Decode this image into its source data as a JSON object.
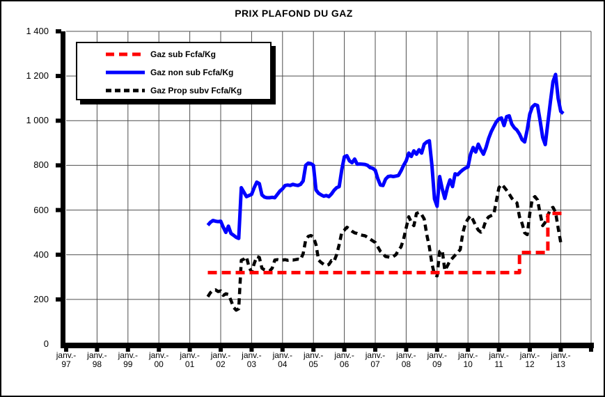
{
  "chart": {
    "title": "PRIX PLAFOND DU GAZ",
    "y_ticks": [
      "0",
      "200",
      "400",
      "600",
      "800",
      "1 000",
      "1 200",
      "1 400"
    ],
    "x_tick_prefix": "janv.-",
    "x_tick_years": [
      "97",
      "98",
      "99",
      "00",
      "01",
      "02",
      "03",
      "04",
      "05",
      "06",
      "07",
      "08",
      "09",
      "10",
      "11",
      "12",
      "13"
    ]
  },
  "legend": {
    "items": [
      {
        "label": "Gaz sub Fcfa/Kg",
        "color": "#ff0000",
        "style": "dashed"
      },
      {
        "label": "Gaz non sub Fcfa/Kg",
        "color": "#0000ff",
        "style": "solid"
      },
      {
        "label": "Gaz Prop subv Fcfa/Kg",
        "color": "#000000",
        "style": "dashed"
      }
    ]
  },
  "chart_data": {
    "type": "line",
    "title": "PRIX PLAFOND DU GAZ",
    "ylabel": "Fcfa/Kg",
    "ylim": [
      0,
      1400
    ],
    "y_step": 200,
    "x_ticks": [
      "janv.-97",
      "janv.-98",
      "janv.-99",
      "janv.-00",
      "janv.-01",
      "janv.-02",
      "janv.-03",
      "janv.-04",
      "janv.-05",
      "janv.-06",
      "janv.-07",
      "janv.-08",
      "janv.-09",
      "janv.-10",
      "janv.-11",
      "janv.-12",
      "janv.-13"
    ],
    "grid": true,
    "legend_position": "top-left",
    "background": "#ffffff",
    "series": [
      {
        "name": "Gaz sub Fcfa/Kg",
        "color": "#ff0000",
        "style": "dashed",
        "width": 5,
        "format": "steps",
        "steps": [
          {
            "start": "2001-08",
            "end": "2011-08",
            "value": 320
          },
          {
            "start": "2011-09",
            "end": "2012-07",
            "value": 410
          },
          {
            "start": "2012-08",
            "end": "2013-02",
            "value": 585
          }
        ]
      },
      {
        "name": "Gaz non sub Fcfa/Kg",
        "color": "#0000ff",
        "style": "solid",
        "width": 5,
        "format": "monthly",
        "start": "2001-08",
        "values": [
          532,
          545,
          553,
          550,
          548,
          550,
          523,
          500,
          528,
          495,
          487,
          478,
          473,
          700,
          680,
          660,
          665,
          670,
          700,
          725,
          718,
          668,
          658,
          655,
          655,
          657,
          655,
          670,
          685,
          695,
          710,
          712,
          710,
          715,
          712,
          710,
          715,
          730,
          800,
          810,
          808,
          800,
          690,
          675,
          668,
          662,
          665,
          660,
          672,
          688,
          700,
          705,
          780,
          838,
          843,
          820,
          812,
          828,
          805,
          806,
          805,
          804,
          800,
          790,
          787,
          778,
          740,
          712,
          710,
          738,
          750,
          752,
          750,
          752,
          755,
          775,
          800,
          820,
          855,
          840,
          865,
          850,
          870,
          855,
          895,
          905,
          910,
          800,
          650,
          617,
          750,
          695,
          652,
          700,
          735,
          705,
          762,
          758,
          770,
          780,
          788,
          793,
          850,
          880,
          860,
          895,
          870,
          850,
          880,
          920,
          950,
          973,
          995,
          1008,
          1012,
          978,
          1018,
          1022,
          985,
          968,
          958,
          940,
          915,
          905,
          960,
          1030,
          1062,
          1072,
          1068,
          1000,
          925,
          893,
          990,
          1085,
          1175,
          1207,
          1100,
          1042,
          1032
        ]
      },
      {
        "name": "Gaz Prop subv Fcfa/Kg",
        "color": "#000000",
        "style": "dashed",
        "width": 4.5,
        "format": "monthly",
        "start": "2001-08",
        "values": [
          212,
          230,
          240,
          243,
          235,
          238,
          218,
          225,
          222,
          195,
          165,
          152,
          158,
          375,
          380,
          390,
          345,
          322,
          360,
          392,
          388,
          340,
          332,
          328,
          327,
          340,
          376,
          378,
          375,
          376,
          378,
          375,
          377,
          376,
          378,
          380,
          378,
          404,
          466,
          482,
          486,
          480,
          445,
          376,
          365,
          357,
          352,
          356,
          374,
          370,
          400,
          445,
          500,
          510,
          523,
          515,
          505,
          498,
          495,
          490,
          487,
          485,
          478,
          470,
          462,
          455,
          435,
          415,
          404,
          392,
          390,
          388,
          392,
          400,
          420,
          435,
          470,
          520,
          570,
          545,
          530,
          585,
          590,
          580,
          560,
          490,
          435,
          360,
          310,
          305,
          415,
          420,
          330,
          350,
          373,
          385,
          398,
          410,
          423,
          498,
          540,
          560,
          575,
          555,
          530,
          510,
          501,
          520,
          555,
          569,
          575,
          580,
          640,
          700,
          715,
          703,
          688,
          672,
          653,
          640,
          632,
          570,
          540,
          498,
          490,
          585,
          650,
          660,
          645,
          585,
          530,
          545,
          575,
          605,
          612,
          590,
          520,
          455,
          450
        ]
      }
    ]
  }
}
